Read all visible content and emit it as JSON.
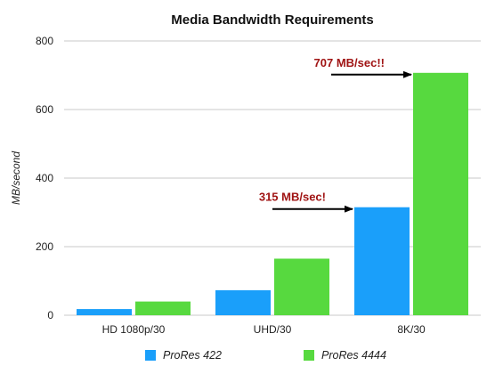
{
  "chart_data": {
    "type": "bar",
    "title": "Media Bandwidth Requirements",
    "xlabel": "",
    "ylabel": "MB/second",
    "ylim": [
      0,
      800
    ],
    "yticks": [
      0,
      200,
      400,
      600,
      800
    ],
    "grid": true,
    "legend_position": "bottom",
    "categories": [
      "HD 1080p/30",
      "UHD/30",
      "8K/30"
    ],
    "series": [
      {
        "name": "ProRes 422",
        "color": "#1a9ffa",
        "values": [
          18,
          73,
          315
        ]
      },
      {
        "name": "ProRes 4444",
        "color": "#57d93f",
        "values": [
          40,
          165,
          707
        ]
      }
    ],
    "annotations": [
      {
        "text": "315 MB/sec!",
        "category": "8K/30",
        "series": "ProRes 422",
        "value": 315
      },
      {
        "text": "707 MB/sec!!",
        "category": "8K/30",
        "series": "ProRes 4444",
        "value": 707
      }
    ]
  }
}
